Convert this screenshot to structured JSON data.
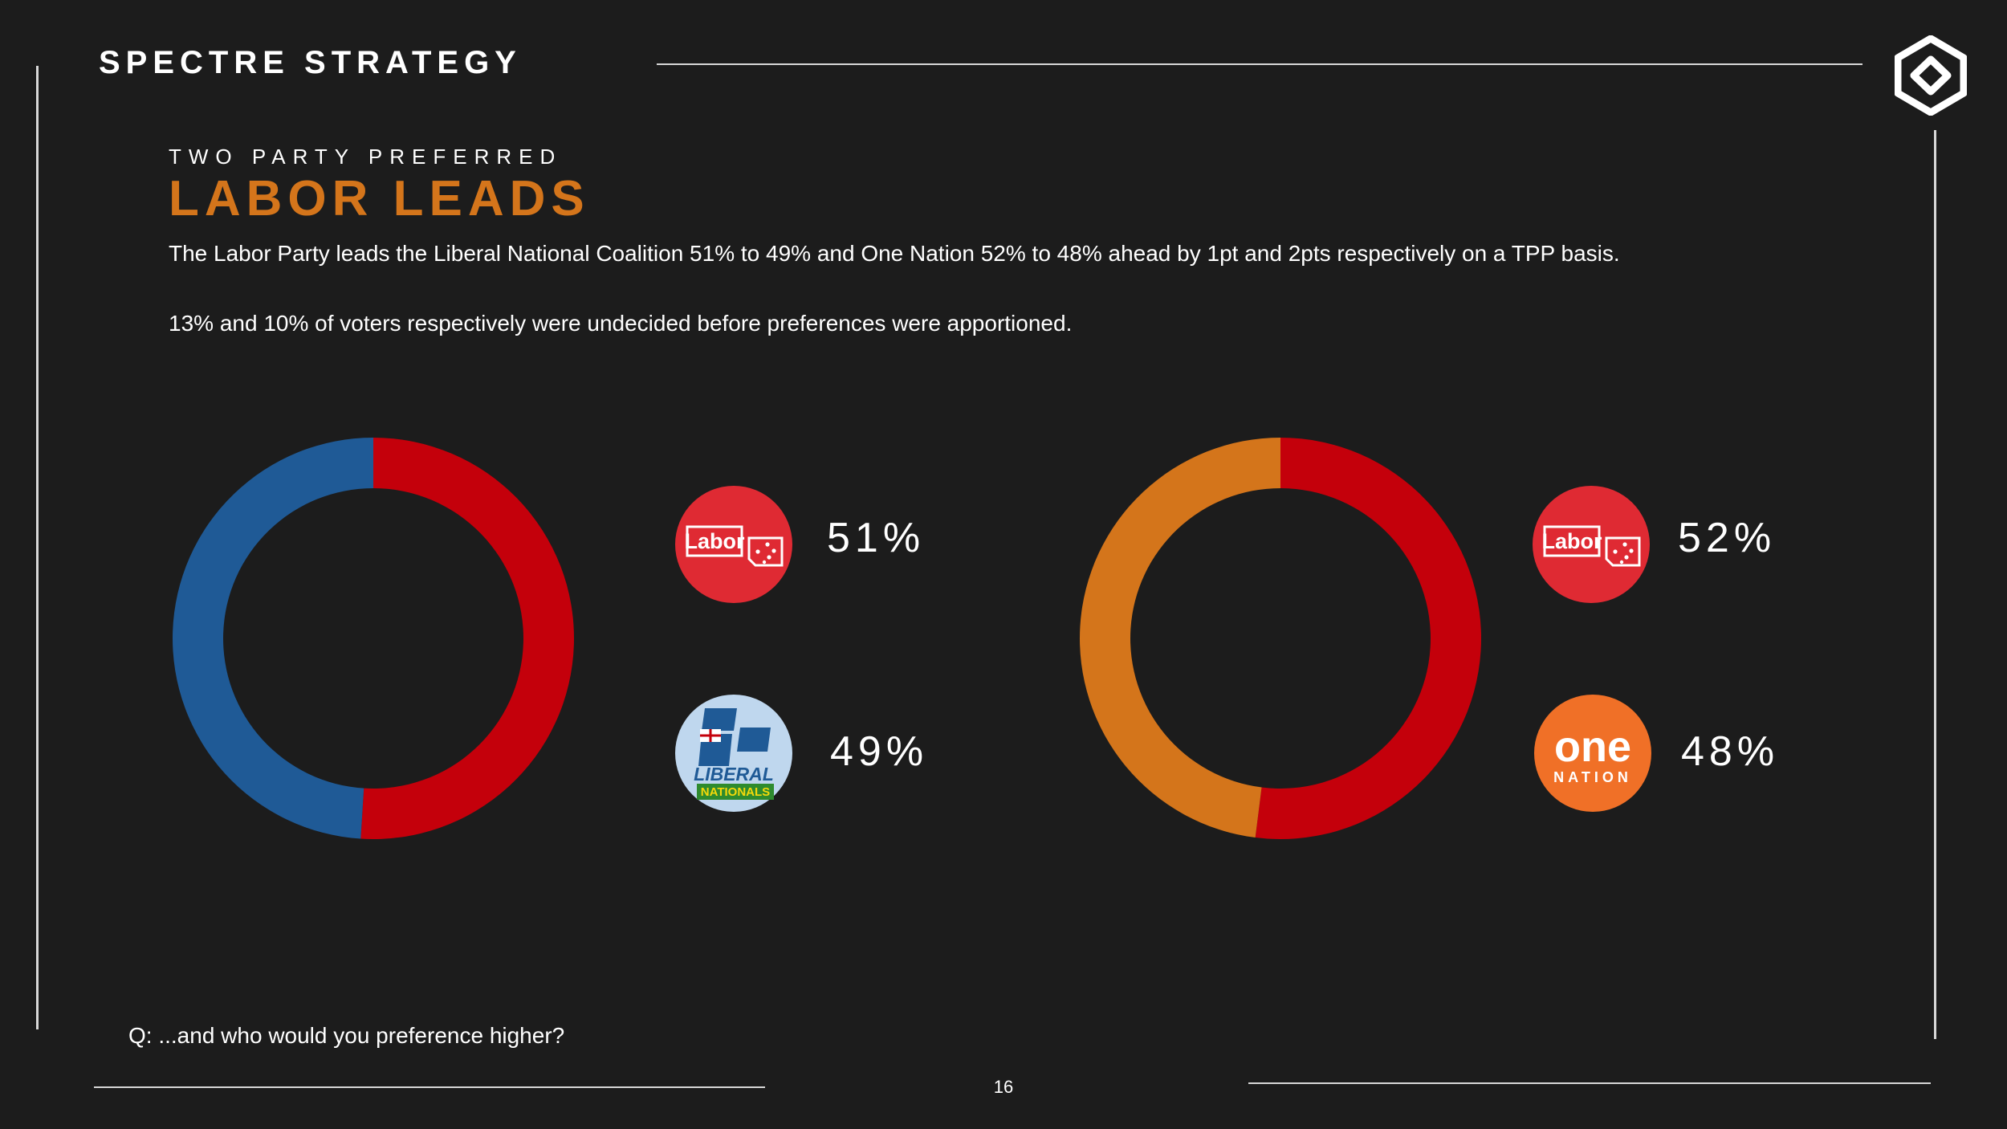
{
  "header": {
    "brand": "SPECTRE STRATEGY"
  },
  "slide": {
    "eyebrow": "TWO PARTY PREFERRED",
    "headline": "LABOR LEADS",
    "paragraph1": "The Labor Party leads the Liberal National Coalition 51% to 49% and One Nation 52% to 48% ahead by 1pt and 2pts respectively on a TPP basis.",
    "paragraph2": "13% and 10% of voters respectively were undecided before preferences were apportioned.",
    "question": "Q: ...and who would you preference higher?",
    "page_number": "16"
  },
  "colors": {
    "background": "#1c1c1c",
    "accent": "#d4751b",
    "labor": "#c4000b",
    "liberal": "#1f5a96",
    "one_nation": "#d4751b"
  },
  "icons": {
    "brand_logo": "spectre-diamond-logo",
    "labor": "labor-party-logo",
    "liberal": "liberal-nationals-logo",
    "one_nation": "one-nation-logo"
  },
  "logos": {
    "labor_text": "Labor",
    "liberal_text": "LIBERAL",
    "nationals_text": "NATIONALS",
    "one_nation_top": "one",
    "one_nation_bottom": "NATION"
  },
  "chart_data": [
    {
      "type": "pie",
      "donut": true,
      "slices": [
        {
          "label": "Labor",
          "value": 51,
          "display": "51%",
          "color": "#c4000b"
        },
        {
          "label": "Liberal National Coalition",
          "value": 49,
          "display": "49%",
          "color": "#1f5a96"
        }
      ]
    },
    {
      "type": "pie",
      "donut": true,
      "slices": [
        {
          "label": "Labor",
          "value": 52,
          "display": "52%",
          "color": "#c4000b"
        },
        {
          "label": "One Nation",
          "value": 48,
          "display": "48%",
          "color": "#d4751b"
        }
      ]
    }
  ]
}
